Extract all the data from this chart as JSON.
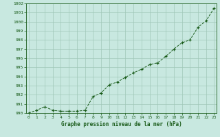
{
  "x": [
    0,
    1,
    2,
    3,
    4,
    5,
    6,
    7,
    8,
    9,
    10,
    11,
    12,
    13,
    14,
    15,
    16,
    17,
    18,
    19,
    20,
    21,
    22,
    23
  ],
  "y": [
    990.0,
    990.3,
    990.7,
    990.3,
    990.2,
    990.2,
    990.2,
    990.3,
    991.8,
    992.2,
    993.1,
    993.4,
    993.9,
    994.4,
    994.8,
    995.3,
    995.5,
    996.2,
    997.0,
    997.7,
    998.0,
    999.4,
    1000.1,
    1001.5
  ],
  "bg_color": "#c8e8e0",
  "grid_color": "#a0c8b8",
  "line_color": "#1a5c1a",
  "marker_color": "#1a5c1a",
  "xlabel": "Graphe pression niveau de la mer (hPa)",
  "xlabel_color": "#1a5c1a",
  "tick_color": "#1a5c1a",
  "ylim": [
    990,
    1002
  ],
  "xlim": [
    -0.3,
    23.3
  ],
  "yticks": [
    990,
    991,
    992,
    993,
    994,
    995,
    996,
    997,
    998,
    999,
    1000,
    1001,
    1002
  ],
  "xticks": [
    0,
    1,
    2,
    3,
    4,
    5,
    6,
    7,
    8,
    9,
    10,
    11,
    12,
    13,
    14,
    15,
    16,
    17,
    18,
    19,
    20,
    21,
    22,
    23
  ],
  "xtick_labels": [
    "0",
    "1",
    "2",
    "3",
    "4",
    "5",
    "6",
    "7",
    "8",
    "9",
    "10",
    "11",
    "12",
    "13",
    "14",
    "15",
    "16",
    "17",
    "18",
    "19",
    "20",
    "21",
    "22",
    "23"
  ]
}
